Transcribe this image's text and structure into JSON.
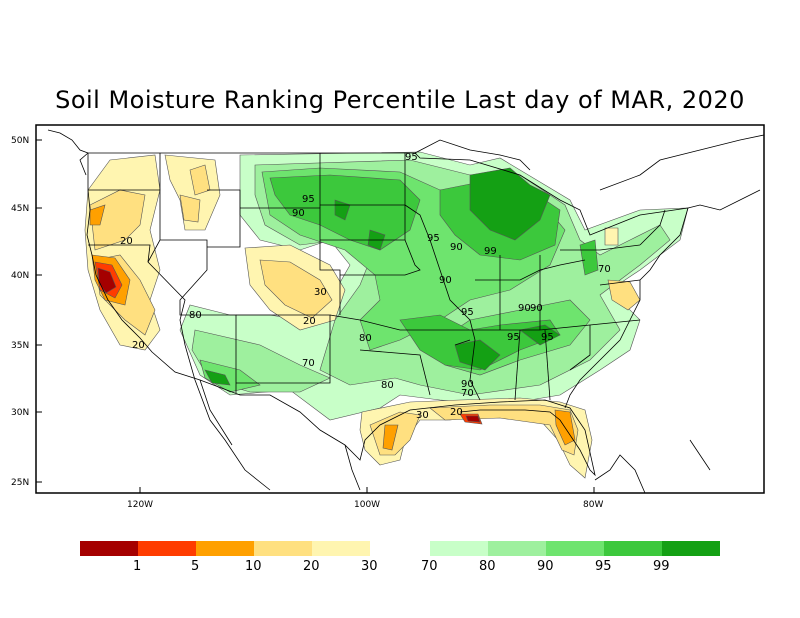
{
  "map": {
    "title": "Soil Moisture Ranking Percentile Last day of MAR, 2020",
    "lat_ticks": [
      "50N",
      "45N",
      "40N",
      "35N",
      "30N",
      "25N"
    ],
    "lon_ticks": [
      "120W",
      "100W",
      "80W"
    ],
    "contour_labels": [
      "95",
      "95",
      "90",
      "95",
      "90",
      "99",
      "90",
      "90",
      "30",
      "20",
      "80",
      "95",
      "95",
      "95",
      "70",
      "80",
      "90",
      "70",
      "80",
      "20",
      "30",
      "20",
      "20",
      "70",
      "90"
    ]
  },
  "legend": {
    "dry_labels": [
      "1",
      "5",
      "10",
      "20",
      "30"
    ],
    "wet_labels": [
      "70",
      "80",
      "90",
      "95",
      "99"
    ],
    "dry_colors": [
      "#a50000",
      "#ff3c00",
      "#ffa000",
      "#ffe080",
      "#fff5b0"
    ],
    "wet_colors": [
      "#c8ffc8",
      "#9ef09e",
      "#6ee46e",
      "#3cc83c",
      "#14a014"
    ]
  }
}
